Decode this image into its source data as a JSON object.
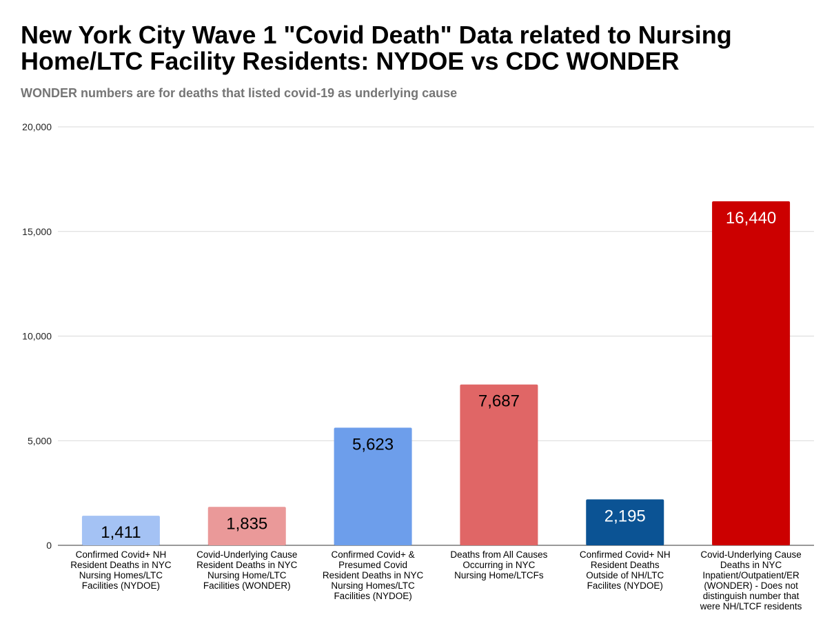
{
  "chart_data": {
    "type": "bar",
    "title": "New York City Wave 1 \"Covid Death\" Data related to Nursing Home/LTC Facility Residents: NYDOE vs CDC WONDER",
    "subtitle": "WONDER numbers are for deaths that listed covid-19 as underlying cause",
    "xlabel": "",
    "ylabel": "",
    "ylim": [
      0,
      20000
    ],
    "yticks": [
      0,
      5000,
      10000,
      15000,
      20000
    ],
    "ytick_labels": [
      "0",
      "5,000",
      "10,000",
      "15,000",
      "20,000"
    ],
    "grid": true,
    "legend": "none",
    "categories": [
      "Confirmed Covid+ NH Resident Deaths in NYC Nursing Homes/LTC Facilities (NYDOE)",
      "Covid-Underlying Cause Resident Deaths in NYC Nursing Home/LTC Facilities (WONDER)",
      "Confirmed Covid+ & Presumed Covid Resident Deaths in NYC Nursing Homes/LTC Facilities (NYDOE)",
      "Deaths from All Causes Occurring in NYC Nursing Home/LTCFs",
      "Confirmed Covid+ NH Resident Deaths Outside of NH/LTC Facilites (NYDOE)",
      "Covid-Underlying Cause Deaths in NYC Inpatient/Outpatient/ER (WONDER) - Does not distinguish number that were NH/LTCF residents"
    ],
    "category_label_lines": [
      [
        "Confirmed Covid+ NH",
        "Resident Deaths in NYC",
        "Nursing Homes/LTC",
        "Facilities (NYDOE)"
      ],
      [
        "Covid-Underlying Cause",
        "Resident Deaths in NYC",
        "Nursing Home/LTC",
        "Facilities (WONDER)"
      ],
      [
        "Confirmed Covid+ &",
        "Presumed Covid",
        "Resident Deaths in NYC",
        "Nursing Homes/LTC",
        "Facilities (NYDOE)"
      ],
      [
        "Deaths from All Causes",
        "Occurring in NYC",
        "Nursing Home/LTCFs"
      ],
      [
        "Confirmed Covid+ NH",
        "Resident Deaths",
        "Outside of NH/LTC",
        "Facilites  (NYDOE)"
      ],
      [
        "Covid-Underlying Cause",
        "Deaths in NYC",
        "Inpatient/Outpatient/ER",
        "(WONDER) - Does not",
        "distinguish number that",
        "were NH/LTCF residents"
      ]
    ],
    "values": [
      1411,
      1835,
      5623,
      7687,
      2195,
      16440
    ],
    "data_labels": [
      "1,411",
      "1,835",
      "5,623",
      "7,687",
      "2,195",
      "16,440"
    ],
    "bar_colors": [
      "#a4c2f4",
      "#ea9999",
      "#6d9eeb",
      "#e06666",
      "#0b5394",
      "#cc0000"
    ],
    "label_colors": [
      "#000000",
      "#000000",
      "#000000",
      "#000000",
      "#ffffff",
      "#ffffff"
    ]
  }
}
